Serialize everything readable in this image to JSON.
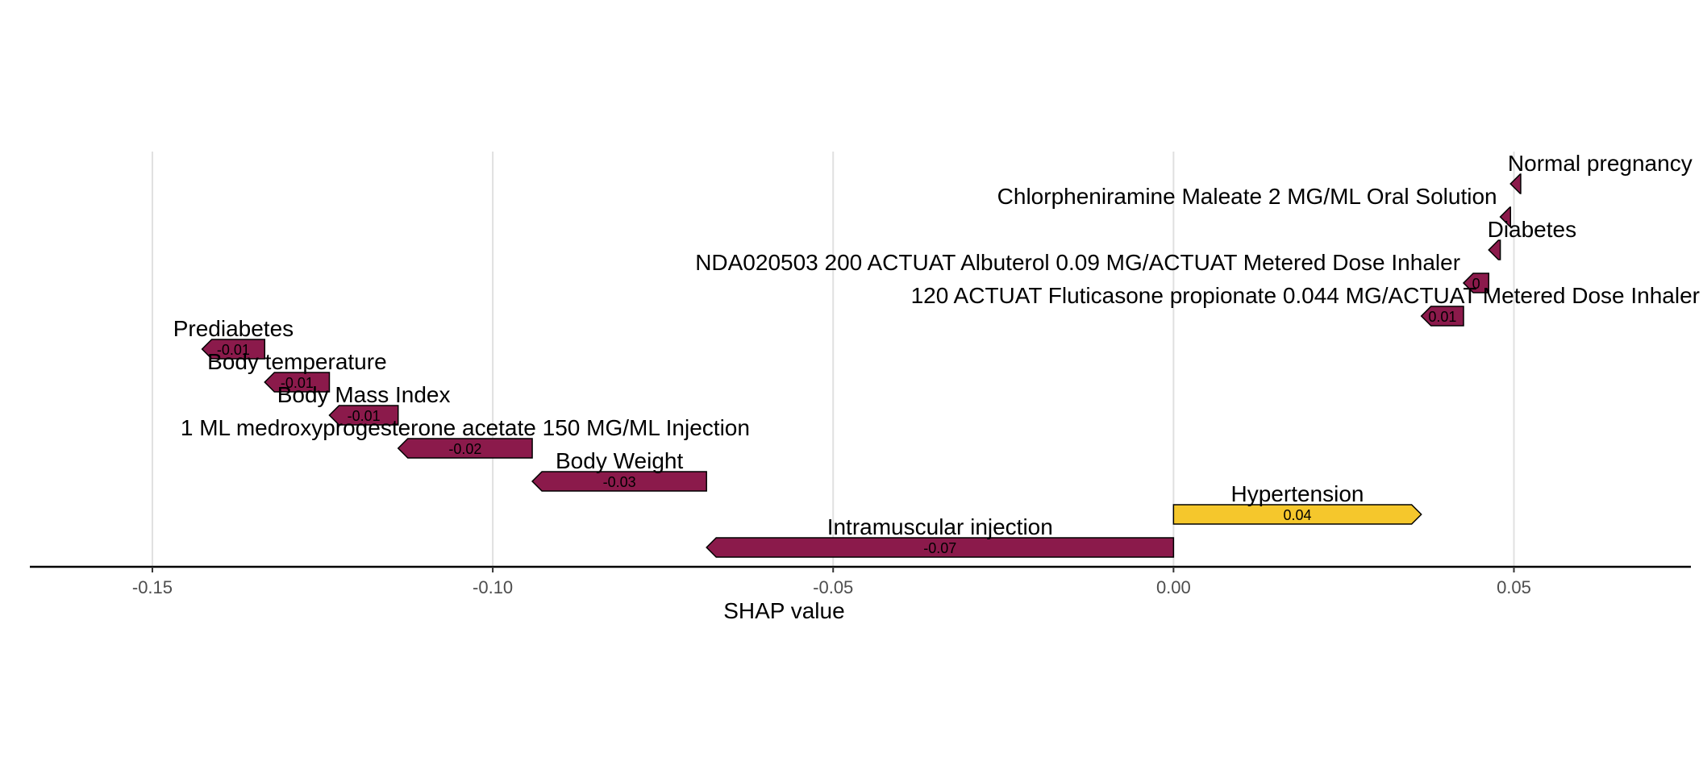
{
  "chart_data": {
    "type": "waterfall-arrow",
    "xlabel": "SHAP value",
    "xlim": [
      -0.168,
      0.076
    ],
    "xticks": [
      {
        "value": -0.15,
        "label": "-0.15"
      },
      {
        "value": -0.1,
        "label": "-0.10"
      },
      {
        "value": -0.05,
        "label": "-0.05"
      },
      {
        "value": 0.0,
        "label": "0.00"
      },
      {
        "value": 0.05,
        "label": "0.05"
      }
    ],
    "grid": true,
    "colors": {
      "negative": "#F5C72C",
      "positive": "#8B1A4B",
      "grid": "#e0e0e0",
      "axis": "#000000"
    },
    "bars": [
      {
        "feature": "Intramuscular injection",
        "start": 0.0,
        "end": -0.0686,
        "label": "-0.07"
      },
      {
        "feature": "Hypertension",
        "start": 0.0,
        "end": 0.0364,
        "label": "0.04"
      },
      {
        "feature": "Body Weight",
        "start": -0.0686,
        "end": -0.0942,
        "label": "-0.03"
      },
      {
        "feature": "1 ML medroxyprogesterone acetate 150 MG/ML Injection",
        "start": -0.0942,
        "end": -0.1139,
        "label": "-0.02"
      },
      {
        "feature": "Body Mass Index",
        "start": -0.1139,
        "end": -0.124,
        "label": "-0.01"
      },
      {
        "feature": "Body temperature",
        "start": -0.124,
        "end": -0.1335,
        "label": "-0.01"
      },
      {
        "feature": "Prediabetes",
        "start": -0.1335,
        "end": -0.1427,
        "label": "-0.01"
      },
      {
        "feature": "120 ACTUAT Fluticasone propionate 0.044 MG/ACTUAT Metered Dose Inhaler",
        "start": 0.0426,
        "end": 0.0364,
        "label": "0.01"
      },
      {
        "feature": "NDA020503 200 ACTUAT Albuterol 0.09 MG/ACTUAT Metered Dose Inhaler",
        "start": 0.0463,
        "end": 0.0426,
        "label": "0"
      },
      {
        "feature": "Diabetes",
        "start": 0.048,
        "end": 0.0463,
        "label": ""
      },
      {
        "feature": "Chlorpheniramine Maleate 2 MG/ML Oral Solution",
        "start": 0.0495,
        "end": 0.048,
        "label": ""
      },
      {
        "feature": "Normal pregnancy",
        "start": 0.051,
        "end": 0.0495,
        "label": ""
      }
    ]
  }
}
